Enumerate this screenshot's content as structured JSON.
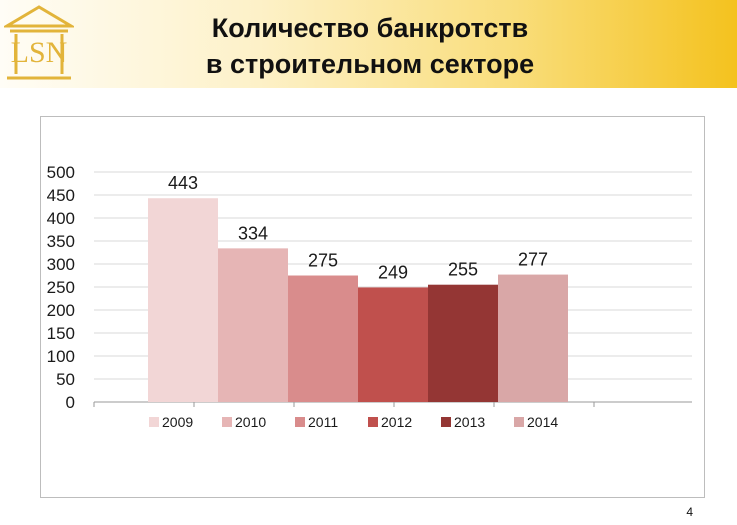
{
  "slide": {
    "title_line1": "Количество банкротств",
    "title_line2": "в строительном секторе",
    "page_number": "4",
    "logo_icon": "bank-columns-logo-icon",
    "logo_color": "#e2b43a"
  },
  "chart_data": {
    "type": "bar",
    "title": "",
    "xlabel": "",
    "ylabel": "",
    "ylim": [
      0,
      500
    ],
    "yticks": [
      "0",
      "50",
      "100",
      "150",
      "200",
      "250",
      "300",
      "350",
      "400",
      "450",
      "500"
    ],
    "grid": true,
    "legend_position": "bottom",
    "categories": [
      "2009",
      "2010",
      "2011",
      "2012",
      "2013",
      "2014"
    ],
    "values": [
      443,
      334,
      275,
      249,
      255,
      277
    ],
    "colors": [
      "#f2d6d6",
      "#e6b5b5",
      "#d98c8c",
      "#c0504d",
      "#943634",
      "#d9a7a7"
    ]
  }
}
